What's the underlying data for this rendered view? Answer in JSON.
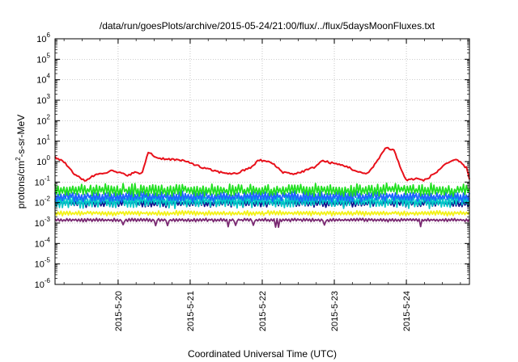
{
  "chart_data": {
    "type": "line",
    "title": "/data/run/goesPlots/archive/2015-05-24/21:00/flux/../flux/5daysMoonFluxes.txt",
    "xlabel": "Coordinated Universal Time (UTC)",
    "ylabel_parts": [
      "protons/cm",
      "2",
      "-s-sr-MeV"
    ],
    "x_range": [
      "2015-05-19T03:00",
      "2015-05-24T21:00"
    ],
    "x_ticks": [
      "2015-5-20",
      "2015-5-21",
      "2015-5-22",
      "2015-5-23",
      "2015-5-24"
    ],
    "y_scale": "log",
    "y_exponents": [
      -6,
      -5,
      -4,
      -3,
      -2,
      -1,
      0,
      1,
      2,
      3,
      4,
      5,
      6
    ],
    "grid": true,
    "legend": "none",
    "series": [
      {
        "color": "#e8101a",
        "base": 0.5,
        "noise": 0.1,
        "profile": [
          [
            "2015-05-19T03:00",
            1.6
          ],
          [
            "2015-05-19T06:00",
            1.0
          ],
          [
            "2015-05-19T10:00",
            0.2
          ],
          [
            "2015-05-19T13:00",
            0.12
          ],
          [
            "2015-05-19T17:00",
            0.25
          ],
          [
            "2015-05-19T22:00",
            0.35
          ],
          [
            "2015-05-20T03:00",
            0.22
          ],
          [
            "2015-05-20T06:00",
            0.3
          ],
          [
            "2015-05-20T08:00",
            0.25
          ],
          [
            "2015-05-20T10:00",
            3.0
          ],
          [
            "2015-05-20T13:00",
            1.5
          ],
          [
            "2015-05-20T20:00",
            1.2
          ],
          [
            "2015-05-21T00:00",
            0.9
          ],
          [
            "2015-05-21T04:00",
            0.5
          ],
          [
            "2015-05-21T10:00",
            0.3
          ],
          [
            "2015-05-21T15:00",
            0.25
          ],
          [
            "2015-05-21T20:00",
            0.5
          ],
          [
            "2015-05-21T23:00",
            1.2
          ],
          [
            "2015-05-22T03:00",
            0.9
          ],
          [
            "2015-05-22T07:00",
            0.3
          ],
          [
            "2015-05-22T11:00",
            0.25
          ],
          [
            "2015-05-22T17:00",
            0.5
          ],
          [
            "2015-05-22T20:00",
            1.1
          ],
          [
            "2015-05-23T00:00",
            0.8
          ],
          [
            "2015-05-23T04:00",
            0.6
          ],
          [
            "2015-05-23T08:00",
            0.3
          ],
          [
            "2015-05-23T11:00",
            0.25
          ],
          [
            "2015-05-23T15:00",
            1.5
          ],
          [
            "2015-05-23T17:00",
            5.0
          ],
          [
            "2015-05-23T20:00",
            3.5
          ],
          [
            "2015-05-23T22:00",
            0.5
          ],
          [
            "2015-05-24T00:00",
            0.12
          ],
          [
            "2015-05-24T03:00",
            0.15
          ],
          [
            "2015-05-24T06:00",
            0.12
          ],
          [
            "2015-05-24T10:00",
            0.3
          ],
          [
            "2015-05-24T13:00",
            0.8
          ],
          [
            "2015-05-24T17:00",
            1.2
          ],
          [
            "2015-05-24T20:00",
            0.5
          ],
          [
            "2015-05-24T21:00",
            0.15
          ]
        ]
      },
      {
        "color": "#22e022",
        "base": 0.04,
        "noise": 0.55,
        "profile": null
      },
      {
        "color": "#00c8c8",
        "base": 0.012,
        "noise": 0.6,
        "profile": null
      },
      {
        "color": "#1e64ff",
        "base": 0.02,
        "noise": 0.45,
        "profile": null
      },
      {
        "color": "#10108c",
        "base": 0.009,
        "noise": 0.3,
        "profile": null
      },
      {
        "color": "#f2f218",
        "base": 0.003,
        "noise": 0.2,
        "profile": null
      },
      {
        "color": "#7a2a72",
        "base": 0.0014,
        "noise": 0.14,
        "profile": null
      }
    ]
  }
}
